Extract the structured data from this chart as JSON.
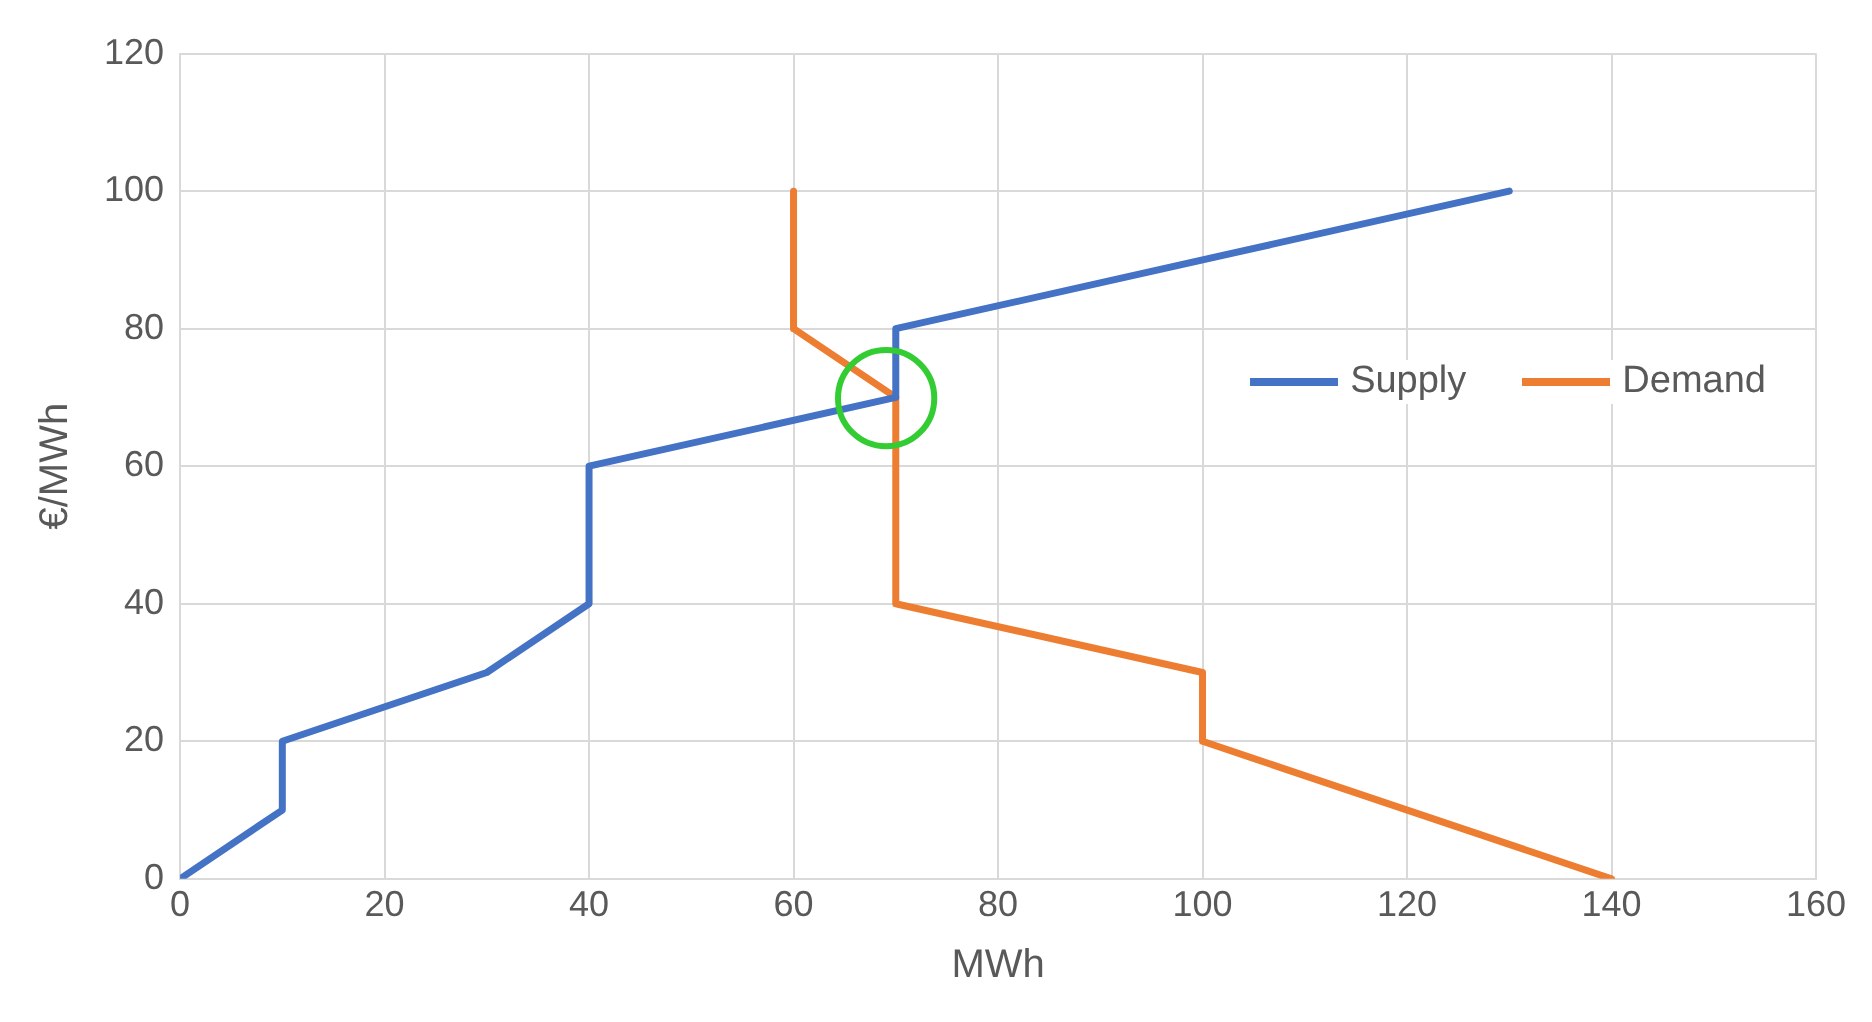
{
  "chart_data": {
    "type": "line",
    "xlabel": "MWh",
    "ylabel": "€/MWh",
    "xlim": [
      0,
      160
    ],
    "xticks": [
      0,
      20,
      40,
      60,
      80,
      100,
      120,
      140,
      160
    ],
    "ylim": [
      0,
      120
    ],
    "yticks": [
      0,
      20,
      40,
      60,
      80,
      100,
      120
    ],
    "grid": true,
    "legend": "right",
    "marker": "none",
    "line_style": "solid",
    "series": [
      {
        "name": "Supply",
        "color": "#4472c4",
        "x": [
          0,
          10,
          10,
          30,
          40,
          40,
          70,
          70,
          130
        ],
        "values": [
          0,
          10,
          20,
          30,
          40,
          60,
          70,
          80,
          100
        ]
      },
      {
        "name": "Demand",
        "color": "#ed7d31",
        "x": [
          60,
          60,
          70,
          70,
          100,
          100,
          140
        ],
        "values": [
          100,
          80,
          70,
          40,
          30,
          20,
          0
        ]
      }
    ]
  }
}
